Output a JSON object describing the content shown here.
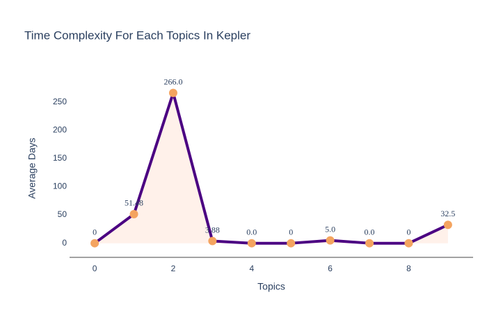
{
  "chart_data": {
    "type": "line",
    "title": "Time Complexity For Each Topics In Kepler",
    "x_label": "Topics",
    "y_label": "Average Days",
    "x": [
      0,
      1,
      2,
      3,
      4,
      5,
      6,
      7,
      8,
      9
    ],
    "series": [
      {
        "name": "Average Days",
        "color": "#4b0082",
        "marker_color": "#f4a460",
        "fill_color": "#fff1ea",
        "values": [
          0,
          51.48,
          266,
          3.88,
          0,
          0,
          5,
          0,
          0,
          32.5
        ],
        "value_labels": [
          "0",
          "51.48",
          "266.0",
          "3.88",
          "0.0",
          "0",
          "5.0",
          "0.0",
          "0",
          "32.5"
        ]
      }
    ],
    "xlim": [
      -0.64,
      9.64
    ],
    "ylim": [
      -25,
      300
    ],
    "xticks": [
      0,
      2,
      4,
      6,
      8
    ],
    "yticks": [
      0,
      50,
      100,
      150,
      200,
      250
    ],
    "grid": false
  }
}
